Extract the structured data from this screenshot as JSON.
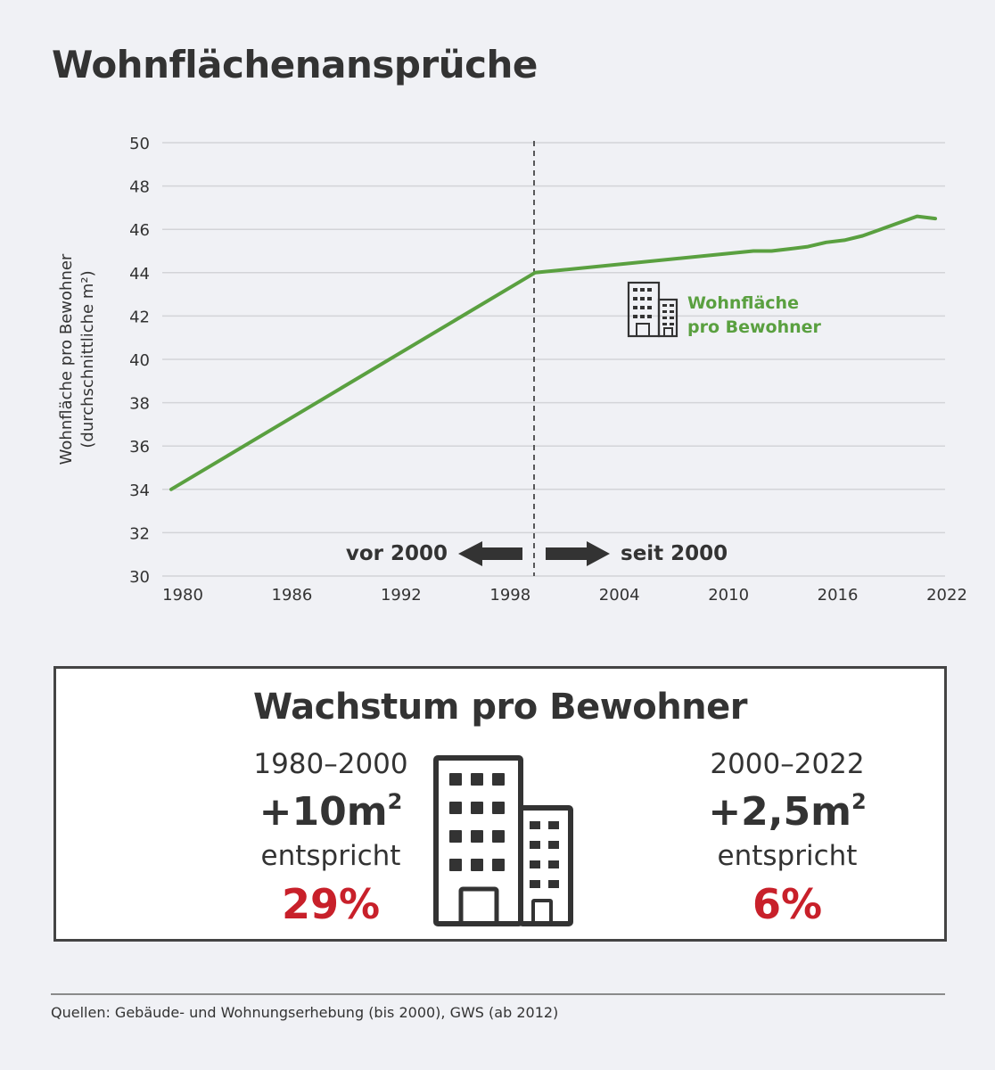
{
  "title": "Wohnflächenansprüche",
  "chart": {
    "ylabel_line1": "Wohnfläche pro Bewohner",
    "ylabel_line2": "(durchschnittliche m²)",
    "era_left": "vor 2000",
    "era_right": "seit 2000",
    "legend_line1": "Wohnfläche",
    "legend_line2": "pro Bewohner",
    "legend_icon": "building-icon",
    "yticks": [
      "50",
      "48",
      "46",
      "44",
      "42",
      "40",
      "38",
      "36",
      "34",
      "32",
      "30"
    ],
    "xticks": [
      "1980",
      "1986",
      "1992",
      "1998",
      "2004",
      "2010",
      "2016",
      "2022"
    ],
    "line_color": "#5aa040"
  },
  "chart_data": {
    "type": "line",
    "title": "Wohnflächenansprüche",
    "xlabel": "",
    "ylabel": "Wohnfläche pro Bewohner (durchschnittliche m²)",
    "ylim": [
      30,
      50
    ],
    "xlim": [
      1980,
      2022
    ],
    "grid": true,
    "legend_position": "inside-right",
    "annotations": [
      "vor 2000",
      "seit 2000",
      "vertical dashed line at 2000"
    ],
    "series": [
      {
        "name": "Wohnfläche pro Bewohner",
        "x": [
          1980,
          2000,
          2012,
          2013,
          2014,
          2015,
          2016,
          2017,
          2018,
          2019,
          2020,
          2021,
          2022
        ],
        "values": [
          34.0,
          44.0,
          45.0,
          45.0,
          45.1,
          45.2,
          45.4,
          45.5,
          45.7,
          46.0,
          46.3,
          46.6,
          46.5
        ]
      }
    ]
  },
  "summary": {
    "title": "Wachstum pro Bewohner",
    "left": {
      "period": "1980–2000",
      "delta": "+10m",
      "unit_sup": "2",
      "equiv": "entspricht",
      "pct": "29%"
    },
    "right": {
      "period": "2000–2022",
      "delta": "+2,5m",
      "unit_sup": "2",
      "equiv": "entspricht",
      "pct": "6%"
    },
    "accent_color": "#c8202a"
  },
  "footer": {
    "source": "Quellen: Gebäude- und Wohnungserhebung (bis 2000), GWS (ab 2012)"
  }
}
